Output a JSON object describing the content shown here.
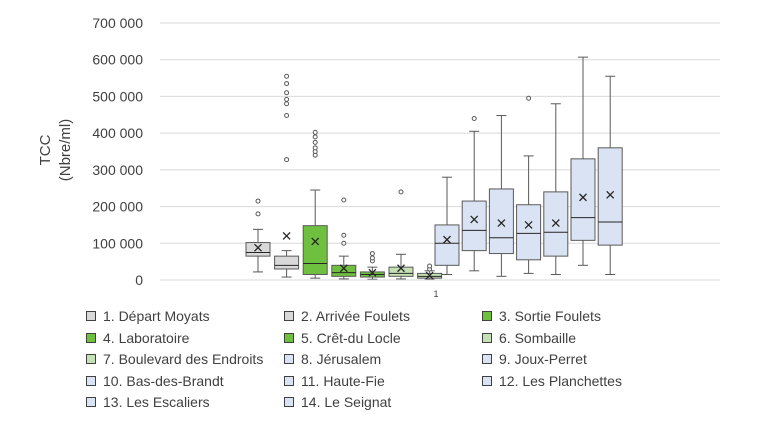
{
  "chart_data": {
    "type": "box",
    "ylabel": "TCC\n(Nbre/ml)",
    "ylim": [
      0,
      700000
    ],
    "yticks": [
      0,
      100000,
      200000,
      300000,
      400000,
      500000,
      600000,
      700000
    ],
    "ytick_labels": [
      "0",
      "100 000",
      "200 000",
      "300 000",
      "400 000",
      "500 000",
      "600 000",
      "700 000"
    ],
    "xtick_label": "1",
    "series": [
      {
        "name": "1. Départ Moyats",
        "color": "#d9d9d9",
        "min": 22000,
        "q1": 65000,
        "median": 75000,
        "q3": 102000,
        "max": 138000,
        "mean": 88000,
        "outliers": [
          180000,
          215000
        ]
      },
      {
        "name": "2. Arrivée Foulets",
        "color": "#d9d9d9",
        "min": 8000,
        "q1": 30000,
        "median": 40000,
        "q3": 65000,
        "max": 80000,
        "mean": 120000,
        "outliers": [
          328000,
          448000,
          480000,
          492000,
          510000,
          535000,
          555000
        ]
      },
      {
        "name": "3. Sortie Foulets",
        "color": "#70c040",
        "min": 5000,
        "q1": 15000,
        "median": 45000,
        "q3": 148000,
        "max": 245000,
        "mean": 105000,
        "outliers": [
          340000,
          350000,
          360000,
          375000,
          390000,
          402000
        ]
      },
      {
        "name": "4. Laboratoire",
        "color": "#70c040",
        "min": 3000,
        "q1": 10000,
        "median": 20000,
        "q3": 40000,
        "max": 65000,
        "mean": 32000,
        "outliers": [
          100000,
          122000,
          218000
        ]
      },
      {
        "name": "5. Crêt-du Locle",
        "color": "#70c040",
        "min": 2000,
        "q1": 8000,
        "median": 15000,
        "q3": 22000,
        "max": 35000,
        "mean": 20000,
        "outliers": [
          52000,
          60000,
          72000
        ]
      },
      {
        "name": "6. Sombaille",
        "color": "#c5e0b4",
        "min": 3000,
        "q1": 10000,
        "median": 18000,
        "q3": 35000,
        "max": 70000,
        "mean": 32000,
        "outliers": [
          240000
        ]
      },
      {
        "name": "7. Boulevard des Endroits",
        "color": "#c5e0b4",
        "min": 2000,
        "q1": 5000,
        "median": 10000,
        "q3": 18000,
        "max": 25000,
        "mean": 12000,
        "outliers": [
          30000,
          38000
        ]
      },
      {
        "name": "8. Jérusalem",
        "color": "#dae3f3",
        "min": 15000,
        "q1": 40000,
        "median": 100000,
        "q3": 150000,
        "max": 280000,
        "mean": 110000,
        "outliers": []
      },
      {
        "name": "9. Joux-Perret",
        "color": "#dae3f3",
        "min": 25000,
        "q1": 80000,
        "median": 135000,
        "q3": 215000,
        "max": 405000,
        "mean": 165000,
        "outliers": [
          440000
        ]
      },
      {
        "name": "10. Bas-des-Brandt",
        "color": "#dae3f3",
        "min": 10000,
        "q1": 72000,
        "median": 115000,
        "q3": 248000,
        "max": 448000,
        "mean": 155000,
        "outliers": []
      },
      {
        "name": "11. Haute-Fie",
        "color": "#dae3f3",
        "min": 18000,
        "q1": 55000,
        "median": 127000,
        "q3": 205000,
        "max": 338000,
        "mean": 150000,
        "outliers": [
          495000
        ]
      },
      {
        "name": "12. Les Planchettes",
        "color": "#dae3f3",
        "min": 15000,
        "q1": 65000,
        "median": 130000,
        "q3": 240000,
        "max": 480000,
        "mean": 155000,
        "outliers": []
      },
      {
        "name": "13. Les Escaliers",
        "color": "#dae3f3",
        "min": 40000,
        "q1": 108000,
        "median": 170000,
        "q3": 330000,
        "max": 607000,
        "mean": 225000,
        "outliers": []
      },
      {
        "name": "14. Le Seignat",
        "color": "#dae3f3",
        "min": 15000,
        "q1": 95000,
        "median": 158000,
        "q3": 360000,
        "max": 555000,
        "mean": 232000,
        "outliers": []
      }
    ]
  }
}
